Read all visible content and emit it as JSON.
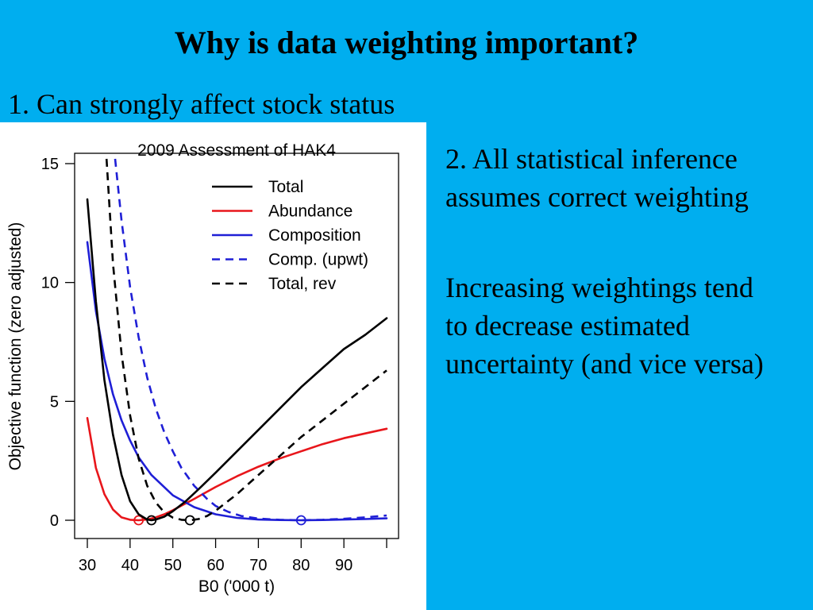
{
  "slide": {
    "title": "Why is data weighting important?",
    "point1": "1. Can strongly affect stock status",
    "point2": "2.  All statistical inference\nassumes correct weighting",
    "point3": "Increasing weightings tend\nto decrease estimated\nuncertainty (and vice versa)"
  },
  "colors": {
    "background": "#00aeef",
    "total": "#000000",
    "abundance": "#e8161b",
    "composition": "#1f1fd6"
  },
  "chart_data": {
    "type": "line",
    "title": "2009 Assessment of HAK4",
    "xlabel": "B0 ('000 t)",
    "ylabel": "Objective function (zero adjusted)",
    "xlim": [
      30,
      100
    ],
    "ylim": [
      0,
      15
    ],
    "xticks": [
      30,
      40,
      50,
      60,
      70,
      80,
      90
    ],
    "yticks": [
      0,
      5,
      10,
      15
    ],
    "legend_position": "top-right",
    "series": [
      {
        "name": "Total",
        "color": "#000000",
        "dash": "solid",
        "min_marker": 45,
        "x": [
          30,
          32,
          34,
          36,
          38,
          40,
          42,
          44,
          45,
          46,
          48,
          50,
          53,
          56,
          60,
          65,
          70,
          75,
          80,
          85,
          90,
          95,
          100
        ],
        "y": [
          13.5,
          9.2,
          5.9,
          3.6,
          1.9,
          0.8,
          0.25,
          0.03,
          0,
          0.03,
          0.15,
          0.38,
          0.8,
          1.3,
          2.0,
          2.9,
          3.8,
          4.7,
          5.6,
          6.4,
          7.2,
          7.8,
          8.5
        ]
      },
      {
        "name": "Abundance",
        "color": "#e8161b",
        "dash": "solid",
        "min_marker": 42,
        "x": [
          30,
          32,
          34,
          36,
          38,
          40,
          42,
          44,
          46,
          48,
          50,
          55,
          60,
          65,
          70,
          75,
          80,
          85,
          90,
          95,
          100
        ],
        "y": [
          4.3,
          2.2,
          1.1,
          0.45,
          0.12,
          0.02,
          0,
          0.03,
          0.12,
          0.25,
          0.42,
          0.9,
          1.4,
          1.85,
          2.25,
          2.6,
          2.9,
          3.2,
          3.45,
          3.65,
          3.85
        ]
      },
      {
        "name": "Composition",
        "color": "#1f1fd6",
        "dash": "solid",
        "min_marker": 80,
        "x": [
          30,
          32,
          34,
          36,
          38,
          40,
          42,
          45,
          50,
          55,
          60,
          65,
          70,
          75,
          80,
          85,
          90,
          95,
          100
        ],
        "y": [
          11.7,
          8.8,
          6.8,
          5.3,
          4.2,
          3.35,
          2.65,
          1.9,
          1.05,
          0.55,
          0.25,
          0.1,
          0.03,
          0.01,
          0,
          0.01,
          0.03,
          0.05,
          0.08
        ]
      },
      {
        "name": "Comp. (upwt)",
        "color": "#1f1fd6",
        "dash": "dashed",
        "x": [
          36.5,
          38,
          40,
          42,
          44,
          46,
          48,
          50,
          52,
          55,
          58,
          60,
          63,
          66,
          70,
          75,
          80,
          85,
          90,
          95,
          100
        ],
        "y": [
          15.2,
          12.6,
          9.8,
          7.7,
          6.0,
          4.7,
          3.7,
          2.9,
          2.2,
          1.45,
          0.9,
          0.6,
          0.35,
          0.18,
          0.07,
          0.02,
          0,
          0.02,
          0.06,
          0.12,
          0.2
        ]
      },
      {
        "name": "Total, rev",
        "color": "#000000",
        "dash": "dashed",
        "min_marker": 54,
        "x": [
          34.5,
          36,
          38,
          40,
          42,
          44,
          46,
          48,
          50,
          52,
          54,
          56,
          58,
          60,
          65,
          70,
          75,
          80,
          85,
          90,
          95,
          100
        ],
        "y": [
          15.2,
          10.8,
          7.0,
          4.4,
          2.6,
          1.45,
          0.75,
          0.33,
          0.11,
          0.02,
          0,
          0.05,
          0.18,
          0.4,
          1.1,
          1.9,
          2.7,
          3.5,
          4.2,
          4.9,
          5.6,
          6.3
        ]
      }
    ]
  }
}
